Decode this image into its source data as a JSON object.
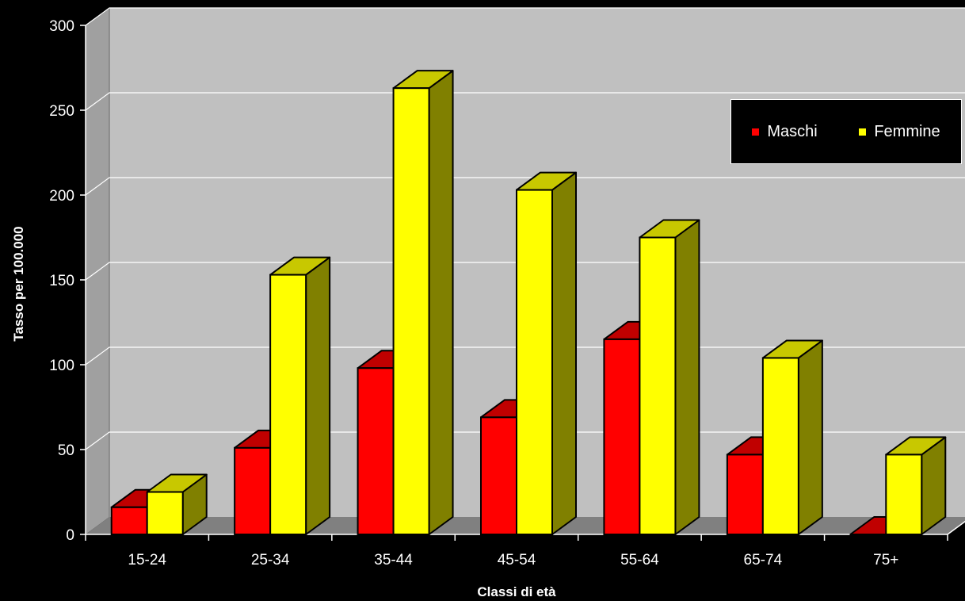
{
  "chart_data": {
    "type": "bar",
    "title": "",
    "xlabel": "Classi di età",
    "ylabel": "Tasso per 100.000",
    "ylim": [
      0,
      300
    ],
    "yticks": [
      0,
      50,
      100,
      150,
      200,
      250,
      300
    ],
    "categories": [
      "15-24",
      "25-34",
      "35-44",
      "45-54",
      "55-64",
      "65-74",
      "75+"
    ],
    "series": [
      {
        "name": "Maschi",
        "values": [
          16,
          51,
          98,
          69,
          115,
          47,
          0
        ],
        "color": "#ff0000",
        "side_color": "#c00000"
      },
      {
        "name": "Femmine",
        "values": [
          25,
          153,
          263,
          203,
          175,
          104,
          47
        ],
        "color": "#ffff00",
        "side_color": "#808000"
      }
    ],
    "grid": true,
    "legend_position": "top-right",
    "style": "3d-clustered-column"
  }
}
